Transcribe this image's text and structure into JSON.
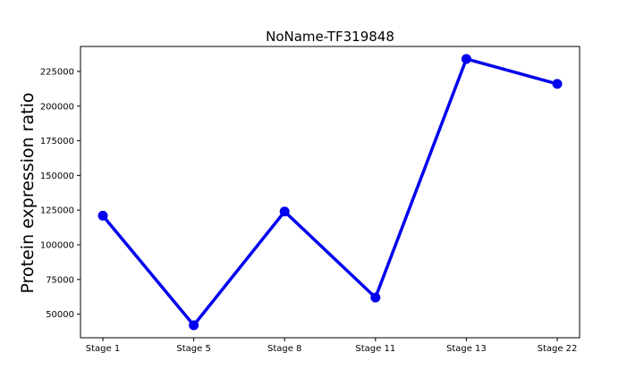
{
  "chart_data": {
    "type": "line",
    "title": "NoName-TF319848",
    "xlabel": "",
    "ylabel": "Protein expression ratio",
    "categories": [
      "Stage 1",
      "Stage 5",
      "Stage 8",
      "Stage 11",
      "Stage 13",
      "Stage 22"
    ],
    "series": [
      {
        "values": [
          121000,
          42000,
          124000,
          62000,
          234000,
          216000
        ]
      }
    ],
    "ylim": [
      33000,
      243000
    ],
    "yticks": [
      50000,
      75000,
      100000,
      125000,
      150000,
      175000,
      200000,
      225000
    ],
    "ytick_labels": [
      "50000",
      "75000",
      "100000",
      "125000",
      "150000",
      "175000",
      "200000",
      "225000"
    ],
    "grid": false,
    "line_color": "#0000ee",
    "marker_color": "#0000ee"
  }
}
